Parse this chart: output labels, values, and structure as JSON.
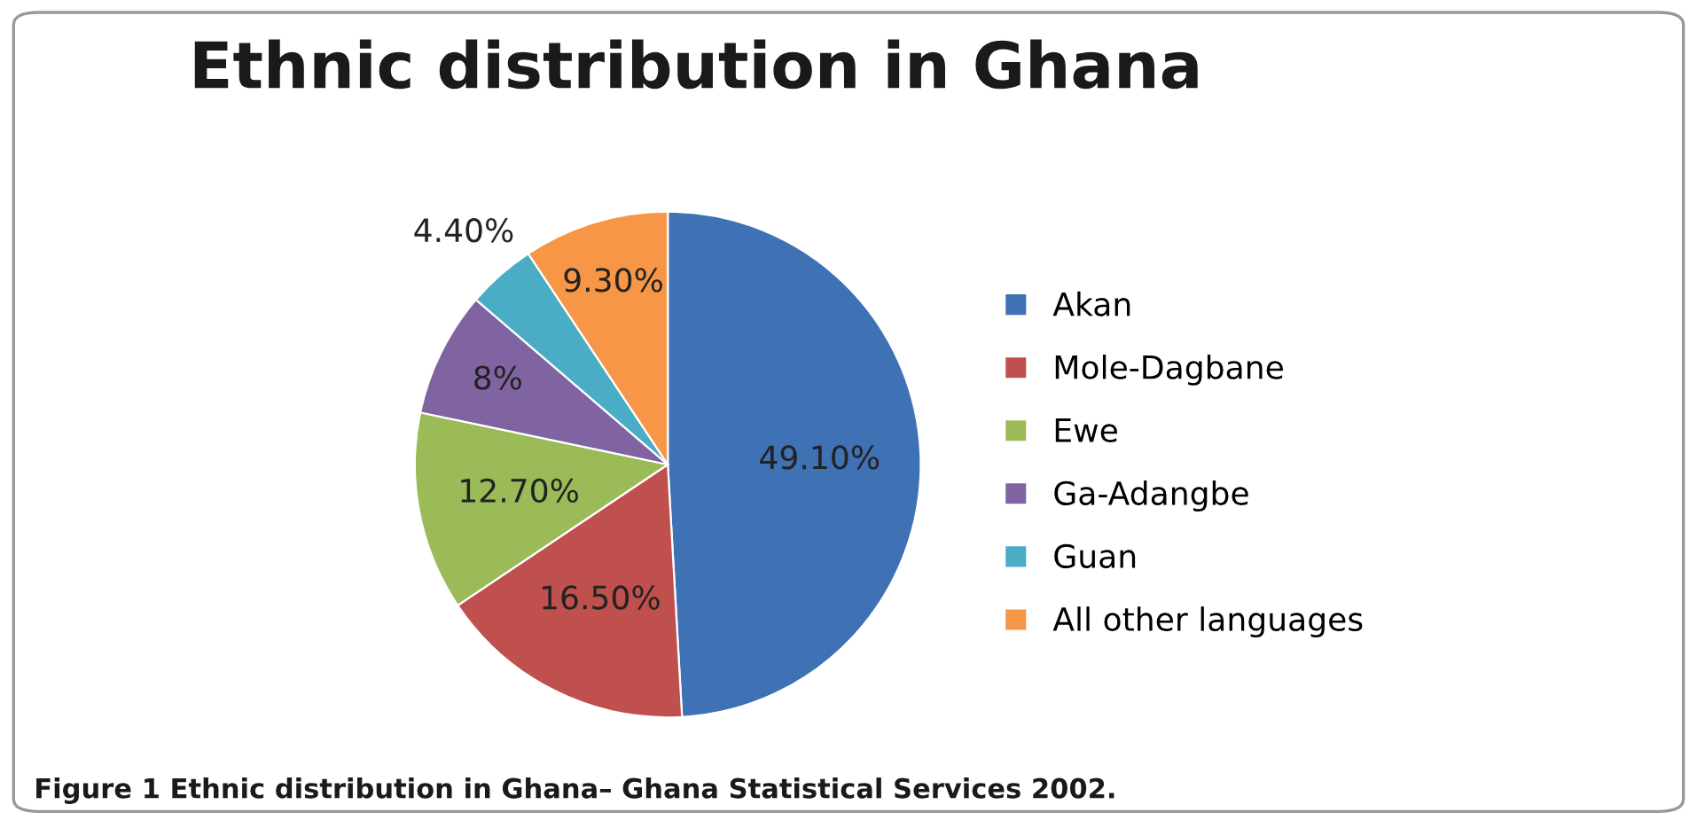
{
  "chart_data": {
    "type": "pie",
    "title": "Ethnic distribution in Ghana",
    "categories": [
      "Akan",
      "Mole-Dagbane",
      "Ewe",
      "Ga-Adangbe",
      "Guan",
      "All other languages"
    ],
    "values": [
      49.1,
      16.5,
      12.7,
      8,
      4.4,
      9.3
    ],
    "value_labels": [
      "49.10%",
      "16.50%",
      "12.70%",
      "8%",
      "4.40%",
      "9.30%"
    ],
    "colors": [
      "#3f71b5",
      "#c0504d",
      "#9bbb59",
      "#8064a2",
      "#4bacc6",
      "#f79646"
    ],
    "legend": "right",
    "annotations": [
      "Figure 1 Ethnic distribution in Ghana– Ghana Statistical Services 2002."
    ]
  }
}
